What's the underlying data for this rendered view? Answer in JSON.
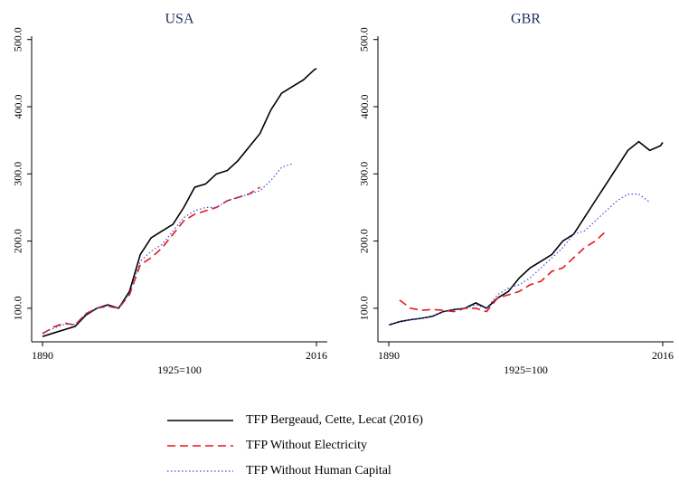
{
  "chart_data": [
    {
      "type": "line",
      "title": "USA",
      "xlabel": "1925=100",
      "x": [
        1890,
        1895,
        1900,
        1905,
        1910,
        1915,
        1920,
        1925,
        1930,
        1935,
        1940,
        1945,
        1950,
        1955,
        1960,
        1965,
        1970,
        1975,
        1980,
        1985,
        1990,
        1995,
        2000,
        2005,
        2010,
        2015,
        2016
      ],
      "series": [
        {
          "name": "TFP Bergeaud, Cette, Lecat (2016)",
          "color": "#000000",
          "dash": "solid",
          "values": [
            58,
            63,
            68,
            73,
            90,
            100,
            105,
            100,
            125,
            180,
            205,
            215,
            225,
            250,
            280,
            285,
            300,
            305,
            320,
            340,
            360,
            395,
            420,
            430,
            440,
            455,
            457
          ]
        },
        {
          "name": "TFP Without Electricity",
          "color": "#e8141c",
          "dash": "dashed",
          "values": [
            62,
            72,
            78,
            75,
            92,
            100,
            103,
            100,
            120,
            165,
            175,
            190,
            210,
            230,
            240,
            245,
            250,
            260,
            265,
            270,
            280,
            null,
            null,
            null,
            null,
            null,
            null
          ]
        },
        {
          "name": "TFP Without Human Capital",
          "color": "#3a4fd8",
          "dash": "dotted",
          "values": [
            63,
            70,
            76,
            76,
            92,
            100,
            104,
            100,
            122,
            170,
            185,
            195,
            215,
            235,
            245,
            250,
            250,
            260,
            265,
            270,
            275,
            290,
            310,
            315,
            null,
            null,
            null
          ]
        }
      ],
      "xlim": [
        1885,
        2021
      ],
      "xticks": [
        1890,
        2016
      ],
      "ylim": [
        50,
        505
      ],
      "yticks": [
        {
          "value": 100,
          "label": "100.0"
        },
        {
          "value": 200,
          "label": "200.0"
        },
        {
          "value": 300,
          "label": "300.0"
        },
        {
          "value": 400,
          "label": "400.0"
        },
        {
          "value": 500,
          "label": "500.0"
        }
      ]
    },
    {
      "type": "line",
      "title": "GBR",
      "xlabel": "1925=100",
      "x": [
        1890,
        1895,
        1900,
        1905,
        1910,
        1915,
        1920,
        1925,
        1930,
        1935,
        1940,
        1945,
        1950,
        1955,
        1960,
        1965,
        1970,
        1975,
        1980,
        1985,
        1990,
        1995,
        2000,
        2005,
        2010,
        2015,
        2016
      ],
      "series": [
        {
          "color": "#000000",
          "dash": "solid",
          "values": [
            75,
            80,
            83,
            85,
            88,
            95,
            98,
            100,
            108,
            100,
            115,
            125,
            145,
            160,
            170,
            180,
            200,
            210,
            235,
            260,
            285,
            310,
            335,
            348,
            335,
            342,
            347
          ]
        },
        {
          "color": "#e8141c",
          "dash": "dashed",
          "values": [
            null,
            112,
            100,
            97,
            98,
            97,
            95,
            100,
            100,
            95,
            115,
            120,
            125,
            135,
            140,
            155,
            160,
            175,
            190,
            200,
            215,
            null,
            null,
            null,
            null,
            null,
            null
          ]
        },
        {
          "color": "#3a4fd8",
          "dash": "dotted",
          "values": [
            75,
            80,
            83,
            85,
            88,
            95,
            98,
            100,
            105,
            100,
            120,
            130,
            135,
            145,
            160,
            175,
            190,
            210,
            215,
            230,
            245,
            260,
            270,
            270,
            258,
            null,
            null
          ]
        }
      ],
      "xlim": [
        1885,
        2021
      ],
      "xticks": [
        1890,
        2016
      ],
      "ylim": [
        50,
        505
      ],
      "yticks": [
        {
          "value": 100,
          "label": "100.0"
        },
        {
          "value": 200,
          "label": "200.0"
        },
        {
          "value": 300,
          "label": "300.0"
        },
        {
          "value": 400,
          "label": "400.0"
        },
        {
          "value": 500,
          "label": "500.0"
        }
      ]
    }
  ]
}
